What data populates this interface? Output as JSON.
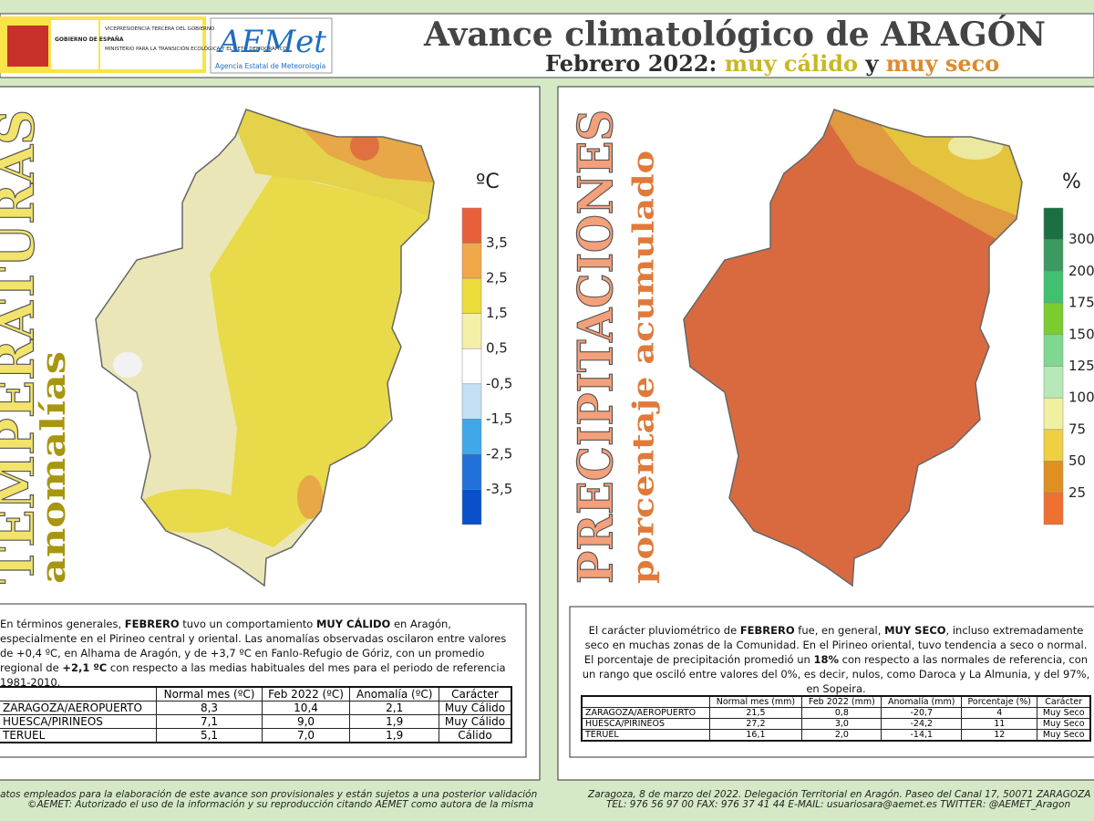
{
  "header": {
    "government": {
      "name": "GOBIERNO DE ESPAÑA",
      "vicepresidency": "VICEPRESIDENCIA TERCERA DEL GOBIERNO",
      "ministry": "MINISTERIO PARA LA TRANSICIÓN ECOLÓGICA Y EL RETO DEMOGRÁFICO"
    },
    "agency": {
      "logo": "AEMet",
      "name": "Agencia Estatal de Meteorología"
    },
    "title": "Avance climatológico de ARAGÓN",
    "subtitle": [
      {
        "text": "Febrero 2022:",
        "color": "#2e2e2e"
      },
      {
        "text": "muy cálido",
        "color": "#c9b81c"
      },
      {
        "text": "y",
        "color": "#2e2e2e"
      },
      {
        "text": "muy seco",
        "color": "#dd8a2e"
      }
    ]
  },
  "panels": [
    {
      "title": "TEMPERATURAS",
      "subtitle": "anomalías",
      "title_color": "#f2e36a",
      "subtitle_color": "#a8960f",
      "legend": {
        "unit": "ºC",
        "labels": [
          "3,5",
          "2,5",
          "1,5",
          "0,5",
          "-0,5",
          "-1,5",
          "-2,5",
          "-3,5"
        ],
        "colors": [
          "#e8603a",
          "#f0a848",
          "#ecdc3c",
          "#f4f0a8",
          "#ffffff",
          "#c4e0f4",
          "#40a8e8",
          "#2070d8",
          "#0a50c8"
        ]
      },
      "summary": [
        {
          "text": "En términos generales, ",
          "bold": false
        },
        {
          "text": "FEBRERO",
          "bold": true
        },
        {
          "text": " tuvo un comportamiento ",
          "bold": false
        },
        {
          "text": "MUY CÁLIDO",
          "bold": true
        },
        {
          "text": " en Aragón, especialmente en el Pirineo central y oriental. Las anomalías observadas oscilaron entre valores de +0,4 ºC, en Alhama de Aragón, y de +3,7 ºC en Fanlo-Refugio de Góriz, con un promedio regional de ",
          "bold": false
        },
        {
          "text": "+2,1 ºC",
          "bold": true
        },
        {
          "text": " con respecto a las medias habituales del mes para el periodo de referencia 1981-2010.",
          "bold": false
        }
      ],
      "table": {
        "columns": [
          "Normal mes (ºC)",
          "Feb 2022 (ºC)",
          "Anomalía (ºC)",
          "Carácter"
        ],
        "rows": [
          [
            "ZARAGOZA/AEROPUERTO",
            "8,3",
            "10,4",
            "2,1",
            "Muy Cálido"
          ],
          [
            "HUESCA/PIRINEOS",
            "7,1",
            "9,0",
            "1,9",
            "Muy Cálido"
          ],
          [
            "TERUEL",
            "5,1",
            "7,0",
            "1,9",
            "Cálido"
          ]
        ]
      }
    },
    {
      "title": "PRECIPITACIONES",
      "subtitle": "porcentaje acumulado",
      "title_color": "#f4a07a",
      "subtitle_color": "#e07a3a",
      "legend": {
        "unit": "%",
        "labels": [
          "300",
          "200",
          "175",
          "150",
          "125",
          "100",
          "75",
          "50",
          "25"
        ],
        "colors": [
          "#1a7040",
          "#3a9a60",
          "#40c070",
          "#7ccc30",
          "#80d890",
          "#b8e8b8",
          "#f0f0a0",
          "#f0d040",
          "#e09020",
          "#f07030"
        ]
      },
      "summary": [
        {
          "text": "El carácter pluviométrico de ",
          "bold": false
        },
        {
          "text": "FEBRERO",
          "bold": true
        },
        {
          "text": " fue, en general, ",
          "bold": false
        },
        {
          "text": "MUY SECO",
          "bold": true
        },
        {
          "text": ", incluso extremadamente seco en muchas zonas de la Comunidad. En el Pirineo oriental, tuvo tendencia a seco o normal. El porcentaje de precipitación promedió un ",
          "bold": false
        },
        {
          "text": "18%",
          "bold": true
        },
        {
          "text": " con respecto a las normales de referencia, con un rango que osciló entre valores del 0%, es decir, nulos, como Daroca y La Almunia, y del 97%, en Sopeira.",
          "bold": false
        }
      ],
      "table": {
        "columns": [
          "Normal mes (mm)",
          "Feb 2022 (mm)",
          "Anomalía (mm)",
          "Porcentaje (%)",
          "Carácter"
        ],
        "rows": [
          [
            "ZARAGOZA/AEROPUERTO",
            "21,5",
            "0,8",
            "-20,7",
            "4",
            "Muy Seco"
          ],
          [
            "HUESCA/PIRINEOS",
            "27,2",
            "3,0",
            "-24,2",
            "11",
            "Muy Seco"
          ],
          [
            "TERUEL",
            "16,1",
            "2,0",
            "-14,1",
            "12",
            "Muy Seco"
          ]
        ]
      }
    }
  ],
  "footer": {
    "notes": [
      "Datos empleados para la elaboración de este avance son provisionales y están sujetos a una posterior validación",
      "©AEMET: Autorizado el uso de la información y su reproducción citando AEMET como autora de la misma"
    ],
    "contact": [
      "Zaragoza, 8 de marzo del 2022. Delegación Territorial en Aragón. Paseo del Canal 17, 50071 ZARAGOZA",
      "TEL: 976 56 97 00  FAX: 976 37 41 44  E-MAIL: usuariosara@aemet.es  TWITTER: @AEMET_Aragon"
    ]
  }
}
